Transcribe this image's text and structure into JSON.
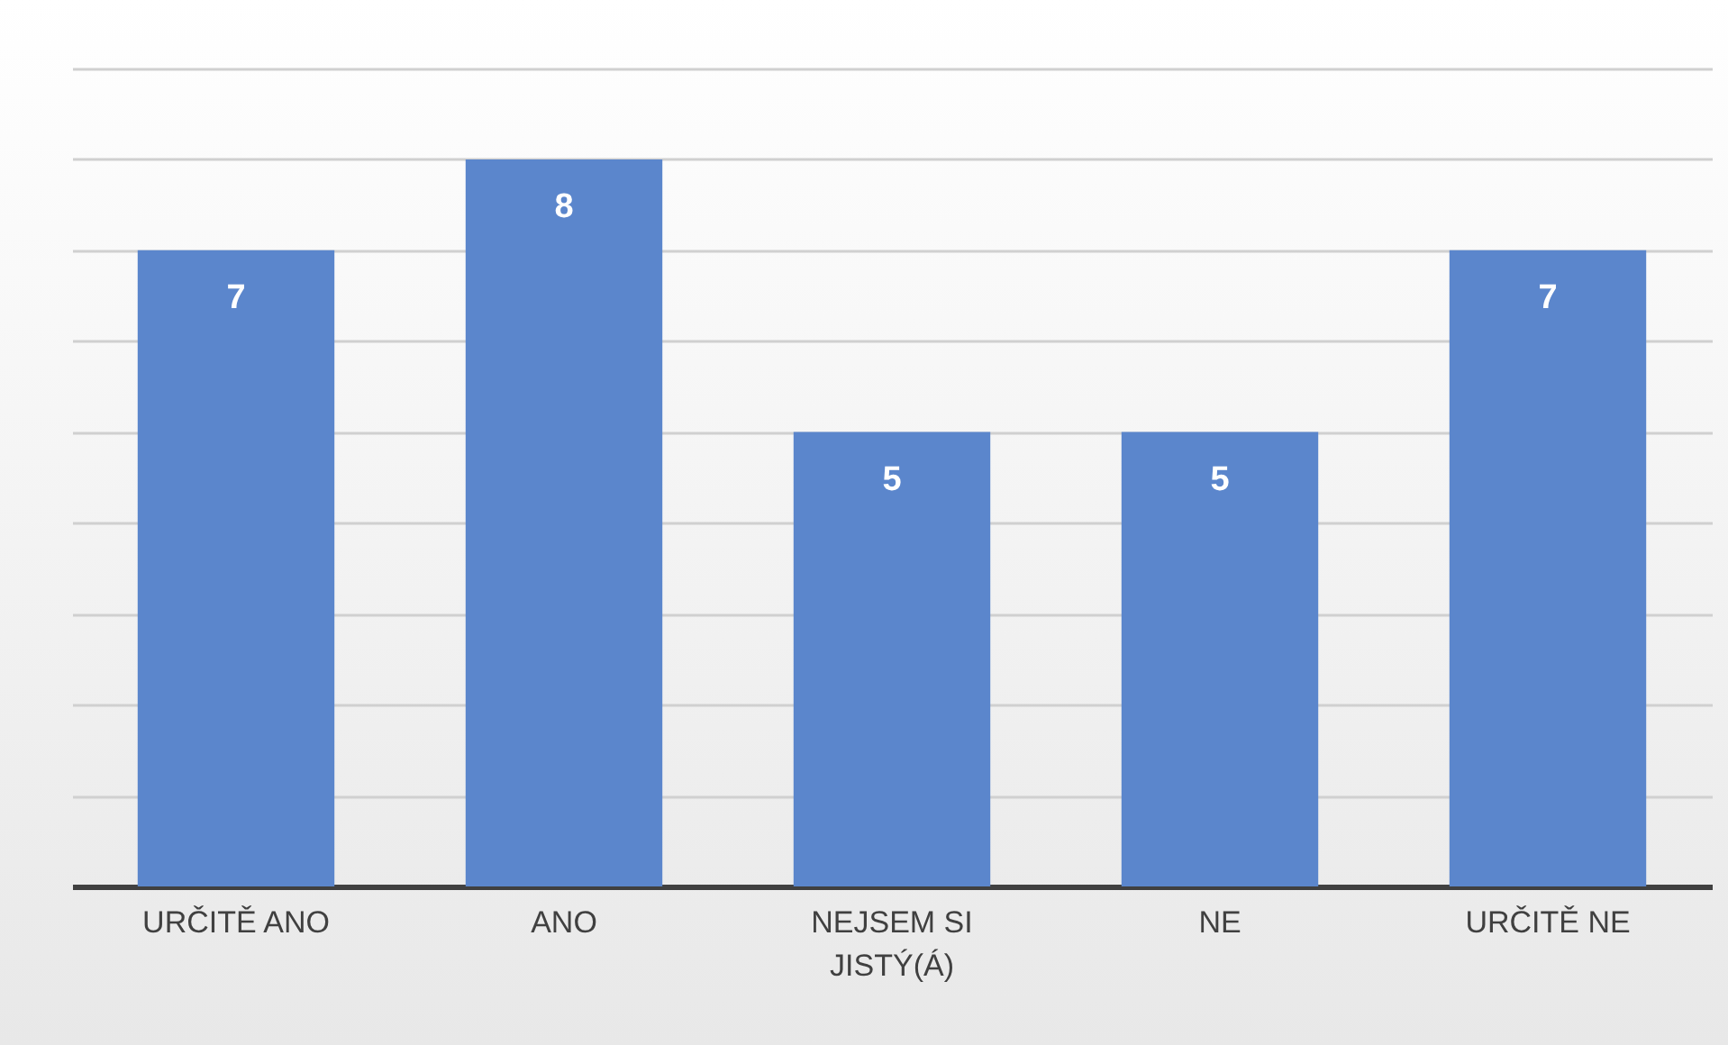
{
  "chart_data": {
    "type": "bar",
    "categories": [
      "URČITĚ ANO",
      "ANO",
      "NEJSEM SI JISTÝ(Á)",
      "NE",
      "URČITĚ NE"
    ],
    "values": [
      7,
      8,
      5,
      5,
      7
    ],
    "color": "#5b86cc",
    "data_labels": true,
    "grid": "y",
    "tick_labels": "x",
    "ylim": [
      0,
      9
    ],
    "yticks": [
      {
        "value": 0,
        "label": null
      },
      {
        "value": 1,
        "label": null
      },
      {
        "value": 2,
        "label": null
      },
      {
        "value": 3,
        "label": null
      },
      {
        "value": 4,
        "label": null
      },
      {
        "value": 5,
        "label": null
      },
      {
        "value": 6,
        "label": null
      },
      {
        "value": 7,
        "label": null
      },
      {
        "value": 8,
        "label": null
      },
      {
        "value": 9,
        "label": null
      }
    ]
  }
}
